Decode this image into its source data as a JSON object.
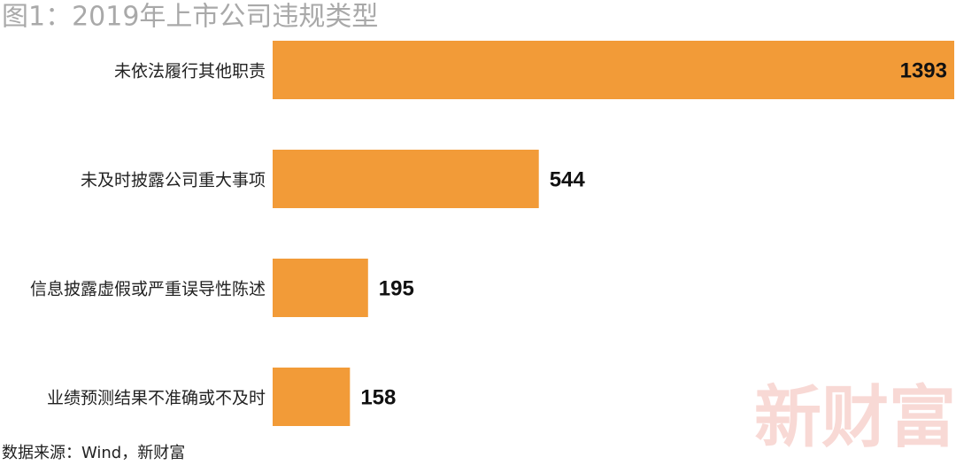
{
  "chart_data": {
    "type": "barh",
    "title": "图1：2019年上市公司违规类型",
    "categories": [
      "未依法履行其他职责",
      "未及时披露公司重大事项",
      "信息披露虚假或严重误导性陈述",
      "业绩预测结果不准确或不及时"
    ],
    "values": [
      1393,
      544,
      195,
      158
    ],
    "color": "#f29b38",
    "source": "数据来源：Wind，新财富",
    "watermark": "新财富"
  }
}
